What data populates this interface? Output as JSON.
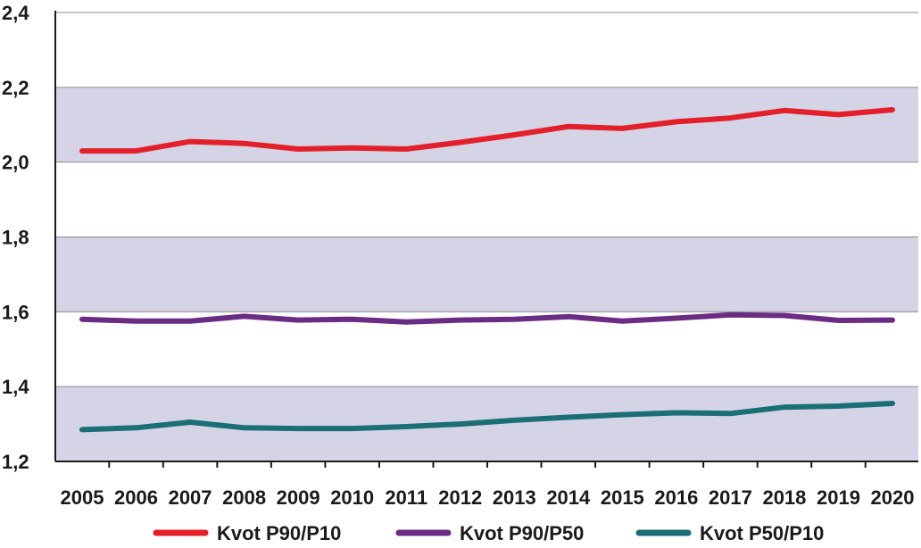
{
  "chart_data": {
    "type": "line",
    "title": "",
    "xlabel": "",
    "ylabel": "",
    "categories": [
      "2005",
      "2006",
      "2007",
      "2008",
      "2009",
      "2010",
      "2011",
      "2012",
      "2013",
      "2014",
      "2015",
      "2016",
      "2017",
      "2018",
      "2019",
      "2020"
    ],
    "ylim": [
      1.2,
      2.4
    ],
    "yticks": [
      {
        "value": 1.2,
        "label": "1,2"
      },
      {
        "value": 1.4,
        "label": "1,4"
      },
      {
        "value": 1.6,
        "label": "1,6"
      },
      {
        "value": 1.8,
        "label": "1,8"
      },
      {
        "value": 2.0,
        "label": "2,0"
      },
      {
        "value": 2.2,
        "label": "2,2"
      },
      {
        "value": 2.4,
        "label": "2,4"
      }
    ],
    "bands": [
      {
        "from": 1.2,
        "to": 1.4,
        "color": "#d5d3e6"
      },
      {
        "from": 1.6,
        "to": 1.8,
        "color": "#d5d3e6"
      },
      {
        "from": 2.0,
        "to": 2.2,
        "color": "#d5d3e6"
      }
    ],
    "grid": true,
    "legend_position": "bottom",
    "series": [
      {
        "name": "Kvot P90/P10",
        "color": "#e3202a",
        "values": [
          2.03,
          2.03,
          2.055,
          2.05,
          2.035,
          2.038,
          2.035,
          2.053,
          2.073,
          2.095,
          2.09,
          2.108,
          2.118,
          2.138,
          2.127,
          2.14
        ]
      },
      {
        "name": "Kvot P90/P50",
        "color": "#6b2c84",
        "values": [
          1.58,
          1.575,
          1.575,
          1.588,
          1.578,
          1.58,
          1.573,
          1.578,
          1.58,
          1.587,
          1.575,
          1.583,
          1.592,
          1.59,
          1.577,
          1.578
        ]
      },
      {
        "name": "Kvot P50/P10",
        "color": "#1a6e75",
        "values": [
          1.285,
          1.29,
          1.305,
          1.29,
          1.288,
          1.288,
          1.293,
          1.3,
          1.31,
          1.318,
          1.325,
          1.33,
          1.328,
          1.345,
          1.348,
          1.355
        ]
      }
    ]
  }
}
